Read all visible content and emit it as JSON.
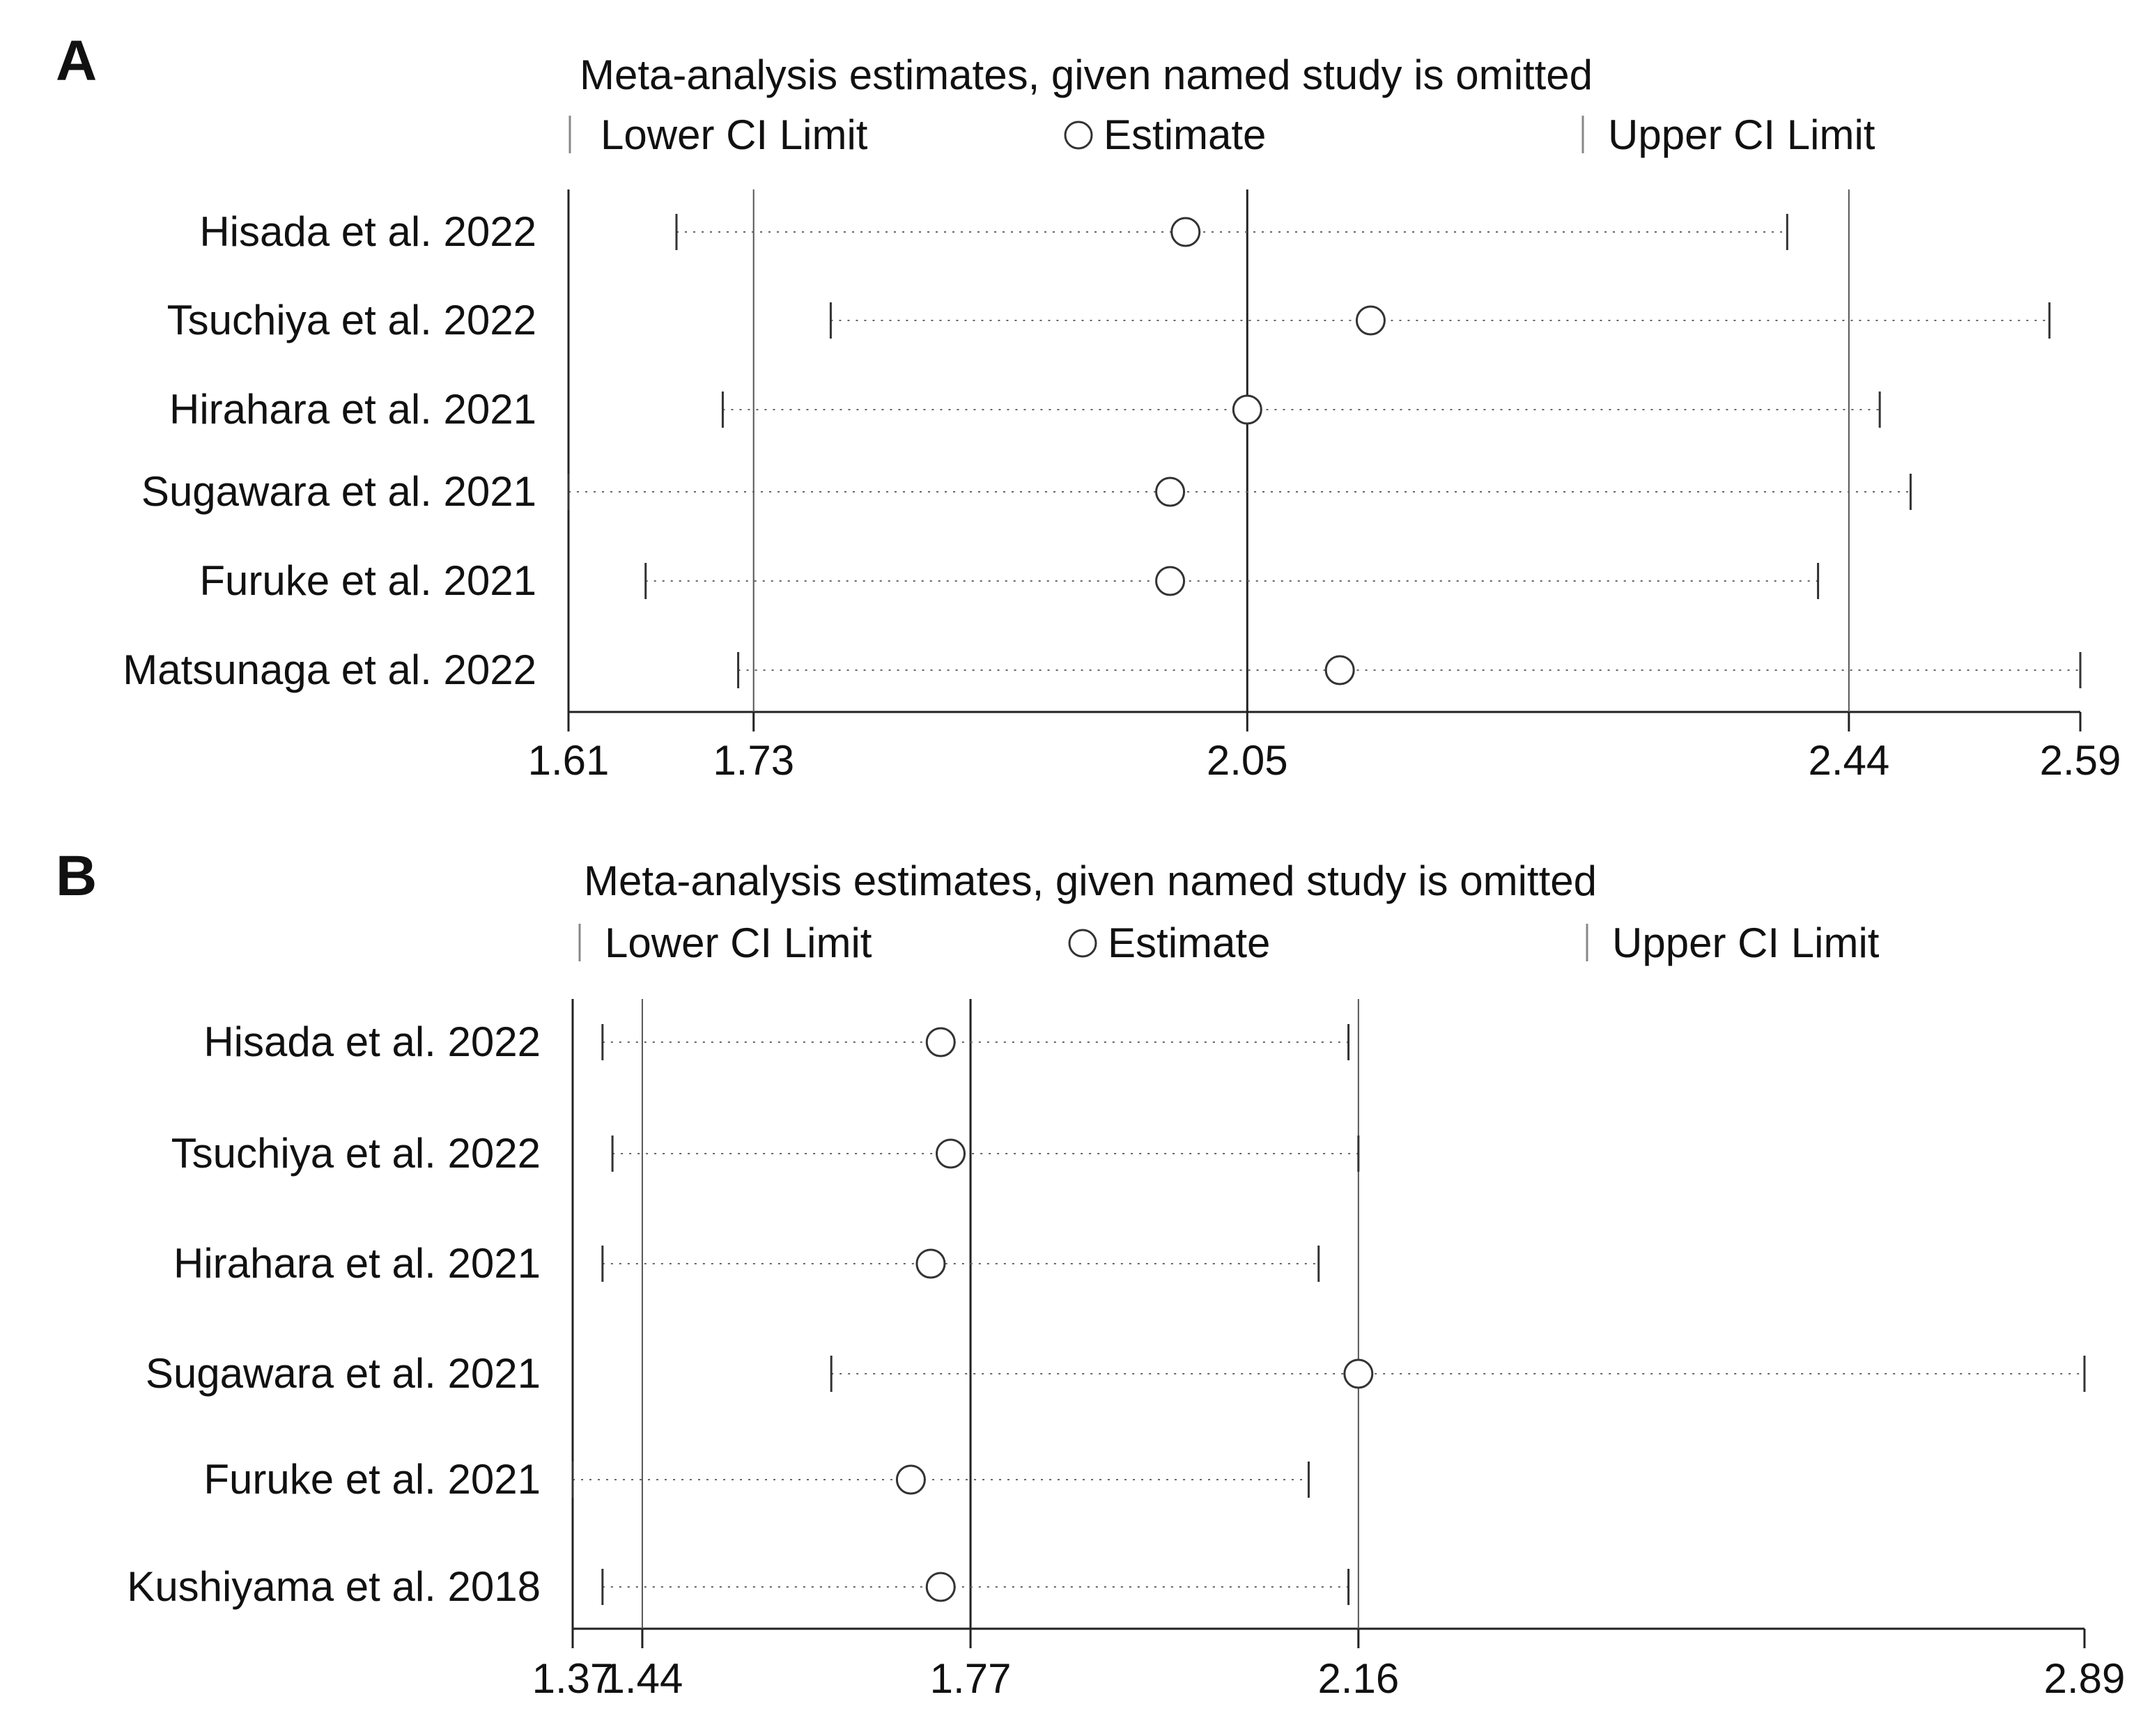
{
  "chart_data": [
    {
      "type": "sensitivity-analysis",
      "panel_label": "A",
      "title": "Meta-analysis estimates, given named study is omitted",
      "legend": {
        "lower": "Lower CI Limit",
        "estimate": "Estimate",
        "upper": "Upper CI Limit",
        "placement": "top"
      },
      "x_range": [
        1.61,
        2.59
      ],
      "x_ticks": [
        {
          "value": 1.61,
          "label": "1.61"
        },
        {
          "value": 1.73,
          "label": "1.73"
        },
        {
          "value": 2.05,
          "label": "2.05"
        },
        {
          "value": 2.44,
          "label": "2.44"
        },
        {
          "value": 2.59,
          "label": "2.59"
        }
      ],
      "reference_lines": [
        1.73,
        2.05,
        2.44
      ],
      "studies": [
        {
          "name": "Hisada et al. 2022",
          "lower": 1.68,
          "estimate": 2.01,
          "upper": 2.4
        },
        {
          "name": "Tsuchiya et al. 2022",
          "lower": 1.78,
          "estimate": 2.13,
          "upper": 2.57
        },
        {
          "name": "Hirahara et al. 2021",
          "lower": 1.71,
          "estimate": 2.05,
          "upper": 2.46
        },
        {
          "name": "Sugawara et al. 2021",
          "lower": 1.61,
          "estimate": 2.0,
          "upper": 2.48
        },
        {
          "name": "Furuke et al. 2021",
          "lower": 1.66,
          "estimate": 2.0,
          "upper": 2.42
        },
        {
          "name": "Matsunaga et al. 2022",
          "lower": 1.72,
          "estimate": 2.11,
          "upper": 2.59
        }
      ]
    },
    {
      "type": "sensitivity-analysis",
      "panel_label": "B",
      "title": "Meta-analysis estimates, given named study is omitted",
      "legend": {
        "lower": "Lower CI Limit",
        "estimate": "Estimate",
        "upper": "Upper CI Limit",
        "placement": "top"
      },
      "x_range": [
        1.37,
        2.89
      ],
      "x_ticks": [
        {
          "value": 1.37,
          "label": "1.37"
        },
        {
          "value": 1.44,
          "label": "1.44"
        },
        {
          "value": 1.77,
          "label": "1.77"
        },
        {
          "value": 2.16,
          "label": "2.16"
        },
        {
          "value": 2.89,
          "label": "2.89"
        }
      ],
      "reference_lines": [
        1.44,
        1.77,
        2.16
      ],
      "studies": [
        {
          "name": "Hisada et al. 2022",
          "lower": 1.4,
          "estimate": 1.74,
          "upper": 2.15
        },
        {
          "name": "Tsuchiya et al. 2022",
          "lower": 1.41,
          "estimate": 1.75,
          "upper": 2.16
        },
        {
          "name": "Hirahara et al. 2021",
          "lower": 1.4,
          "estimate": 1.73,
          "upper": 2.12
        },
        {
          "name": "Sugawara et al. 2021",
          "lower": 1.63,
          "estimate": 2.16,
          "upper": 2.89
        },
        {
          "name": "Furuke et al. 2021",
          "lower": 1.37,
          "estimate": 1.71,
          "upper": 2.11
        },
        {
          "name": "Kushiyama et al. 2018",
          "lower": 1.4,
          "estimate": 1.74,
          "upper": 2.15
        }
      ]
    }
  ]
}
